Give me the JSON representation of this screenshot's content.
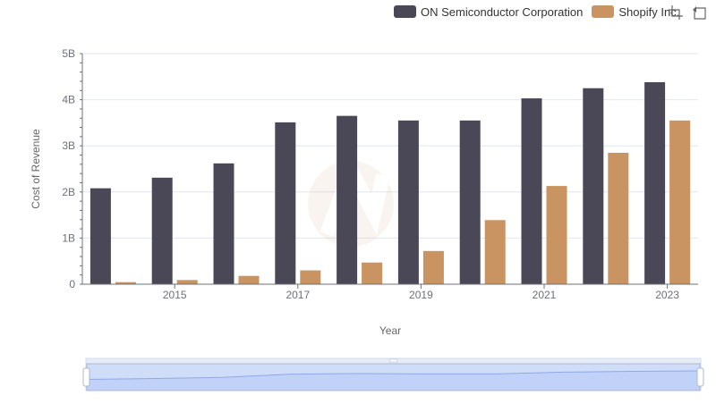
{
  "legend": [
    {
      "name": "ON Semiconductor Corporation",
      "color": "#4a4856"
    },
    {
      "name": "Shopify Inc.",
      "color": "#c99461"
    }
  ],
  "toolbar": {
    "zoom_icon": "zoom-select-icon",
    "restore_icon": "restore-icon"
  },
  "chart_data": {
    "type": "bar",
    "x": [
      2014,
      2015,
      2016,
      2017,
      2018,
      2019,
      2020,
      2021,
      2022,
      2023
    ],
    "xticks": [
      "2015",
      "2017",
      "2019",
      "2021",
      "2023"
    ],
    "xtick_values": [
      2015,
      2017,
      2019,
      2021,
      2023
    ],
    "yticks": [
      "0",
      "1B",
      "2B",
      "3B",
      "4B",
      "5B"
    ],
    "ytick_values": [
      0,
      1000000000,
      2000000000,
      3000000000,
      4000000000,
      5000000000
    ],
    "xlabel": "Year",
    "ylabel": "Cost of Revenue",
    "ylim": [
      0,
      5000000000
    ],
    "grid": true,
    "legend_position": "top-right",
    "series": [
      {
        "name": "ON Semiconductor Corporation",
        "color": "#4a4856",
        "values": [
          2080000000,
          2310000000,
          2620000000,
          3510000000,
          3650000000,
          3550000000,
          3550000000,
          4030000000,
          4250000000,
          4380000000
        ]
      },
      {
        "name": "Shopify Inc.",
        "color": "#c99461",
        "values": [
          45000000,
          90000000,
          180000000,
          300000000,
          470000000,
          720000000,
          1390000000,
          2130000000,
          2850000000,
          3550000000
        ]
      }
    ]
  }
}
